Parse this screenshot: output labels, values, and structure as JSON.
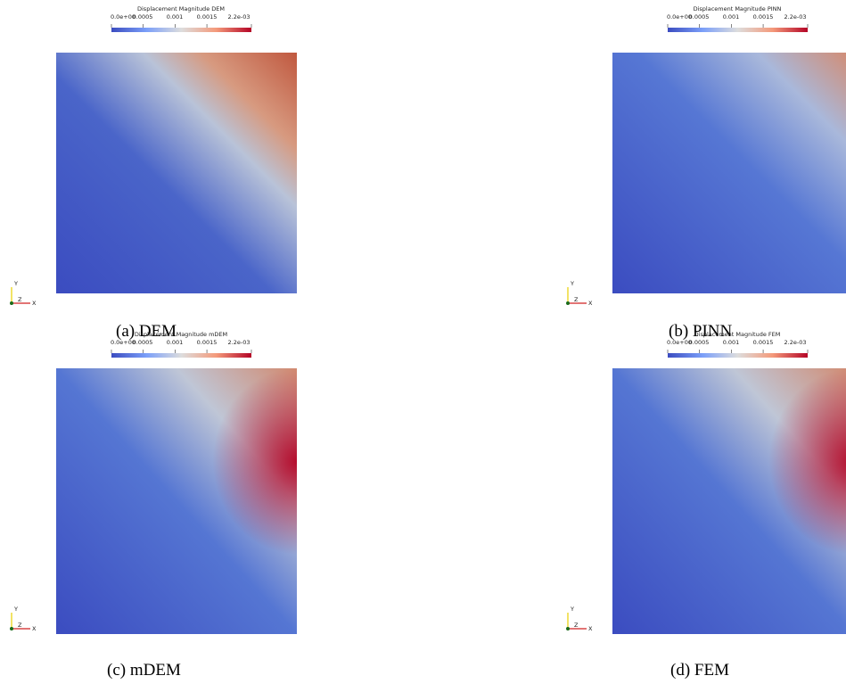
{
  "axes_triad": {
    "y": "Y",
    "z": "Z",
    "x": "X"
  },
  "panels": [
    {
      "colorbar_title": "Displacement Magnitude DEM",
      "ticks": [
        "0.0e+00",
        "0.0005",
        "0.001",
        "0.0015",
        "2.2e-03"
      ],
      "caption": "(a) DEM"
    },
    {
      "colorbar_title": "Displacement Magnitude PINN",
      "ticks": [
        "0.0e+00",
        "0.0005",
        "0.001",
        "0.0015",
        "2.2e-03"
      ],
      "caption": "(b) PINN"
    },
    {
      "colorbar_title": "Displacement Magnitude mDEM",
      "ticks": [
        "0.0e+00",
        "0.0005",
        "0.001",
        "0.0015",
        "2.2e-03"
      ],
      "caption": "(c) mDEM"
    },
    {
      "colorbar_title": "Displacement Magnitude FEM",
      "ticks": [
        "0.0e+00",
        "0.0005",
        "0.001",
        "0.0015",
        "2.2e-03"
      ],
      "caption": "(d) FEM"
    }
  ]
}
